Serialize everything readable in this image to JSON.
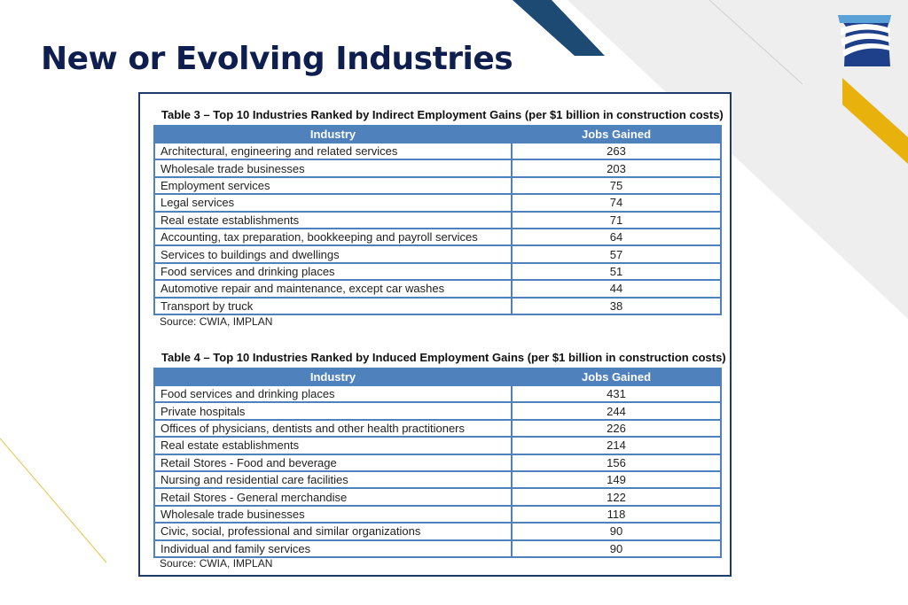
{
  "title": "New or Evolving Industries",
  "colors": {
    "title": "#0e1e4e",
    "header": "#4f81bd",
    "navy": "#1d4a73",
    "gold": "#e8b10c"
  },
  "table3": {
    "caption": "Table 3 – Top 10 Industries Ranked by Indirect Employment Gains (per $1 billion in construction costs)",
    "headers": [
      "Industry",
      "Jobs Gained"
    ],
    "rows": [
      [
        "Architectural, engineering and related services",
        "263"
      ],
      [
        "Wholesale trade businesses",
        "203"
      ],
      [
        "Employment services",
        "75"
      ],
      [
        "Legal services",
        "74"
      ],
      [
        "Real estate establishments",
        "71"
      ],
      [
        "Accounting, tax preparation, bookkeeping and payroll services",
        "64"
      ],
      [
        "Services to buildings and dwellings",
        "57"
      ],
      [
        "Food services and drinking places",
        "51"
      ],
      [
        "Automotive repair and maintenance, except car washes",
        "44"
      ],
      [
        "Transport by truck",
        "38"
      ]
    ],
    "source": "Source: CWIA, IMPLAN"
  },
  "table4": {
    "caption": "Table 4 – Top 10 Industries Ranked by Induced Employment Gains (per $1 billion in construction costs)",
    "headers": [
      "Industry",
      "Jobs Gained"
    ],
    "rows": [
      [
        "Food services and drinking places",
        "431"
      ],
      [
        "Private hospitals",
        "244"
      ],
      [
        "Offices of physicians, dentists and other health practitioners",
        "226"
      ],
      [
        "Real estate establishments",
        "214"
      ],
      [
        "Retail Stores - Food and beverage",
        "156"
      ],
      [
        "Nursing and residential care facilities",
        "149"
      ],
      [
        "Retail Stores - General merchandise",
        "122"
      ],
      [
        "Wholesale trade businesses",
        "118"
      ],
      [
        "Civic, social, professional and similar organizations",
        "90"
      ],
      [
        "Individual and family services",
        "90"
      ]
    ],
    "source": "Source: CWIA, IMPLAN"
  }
}
